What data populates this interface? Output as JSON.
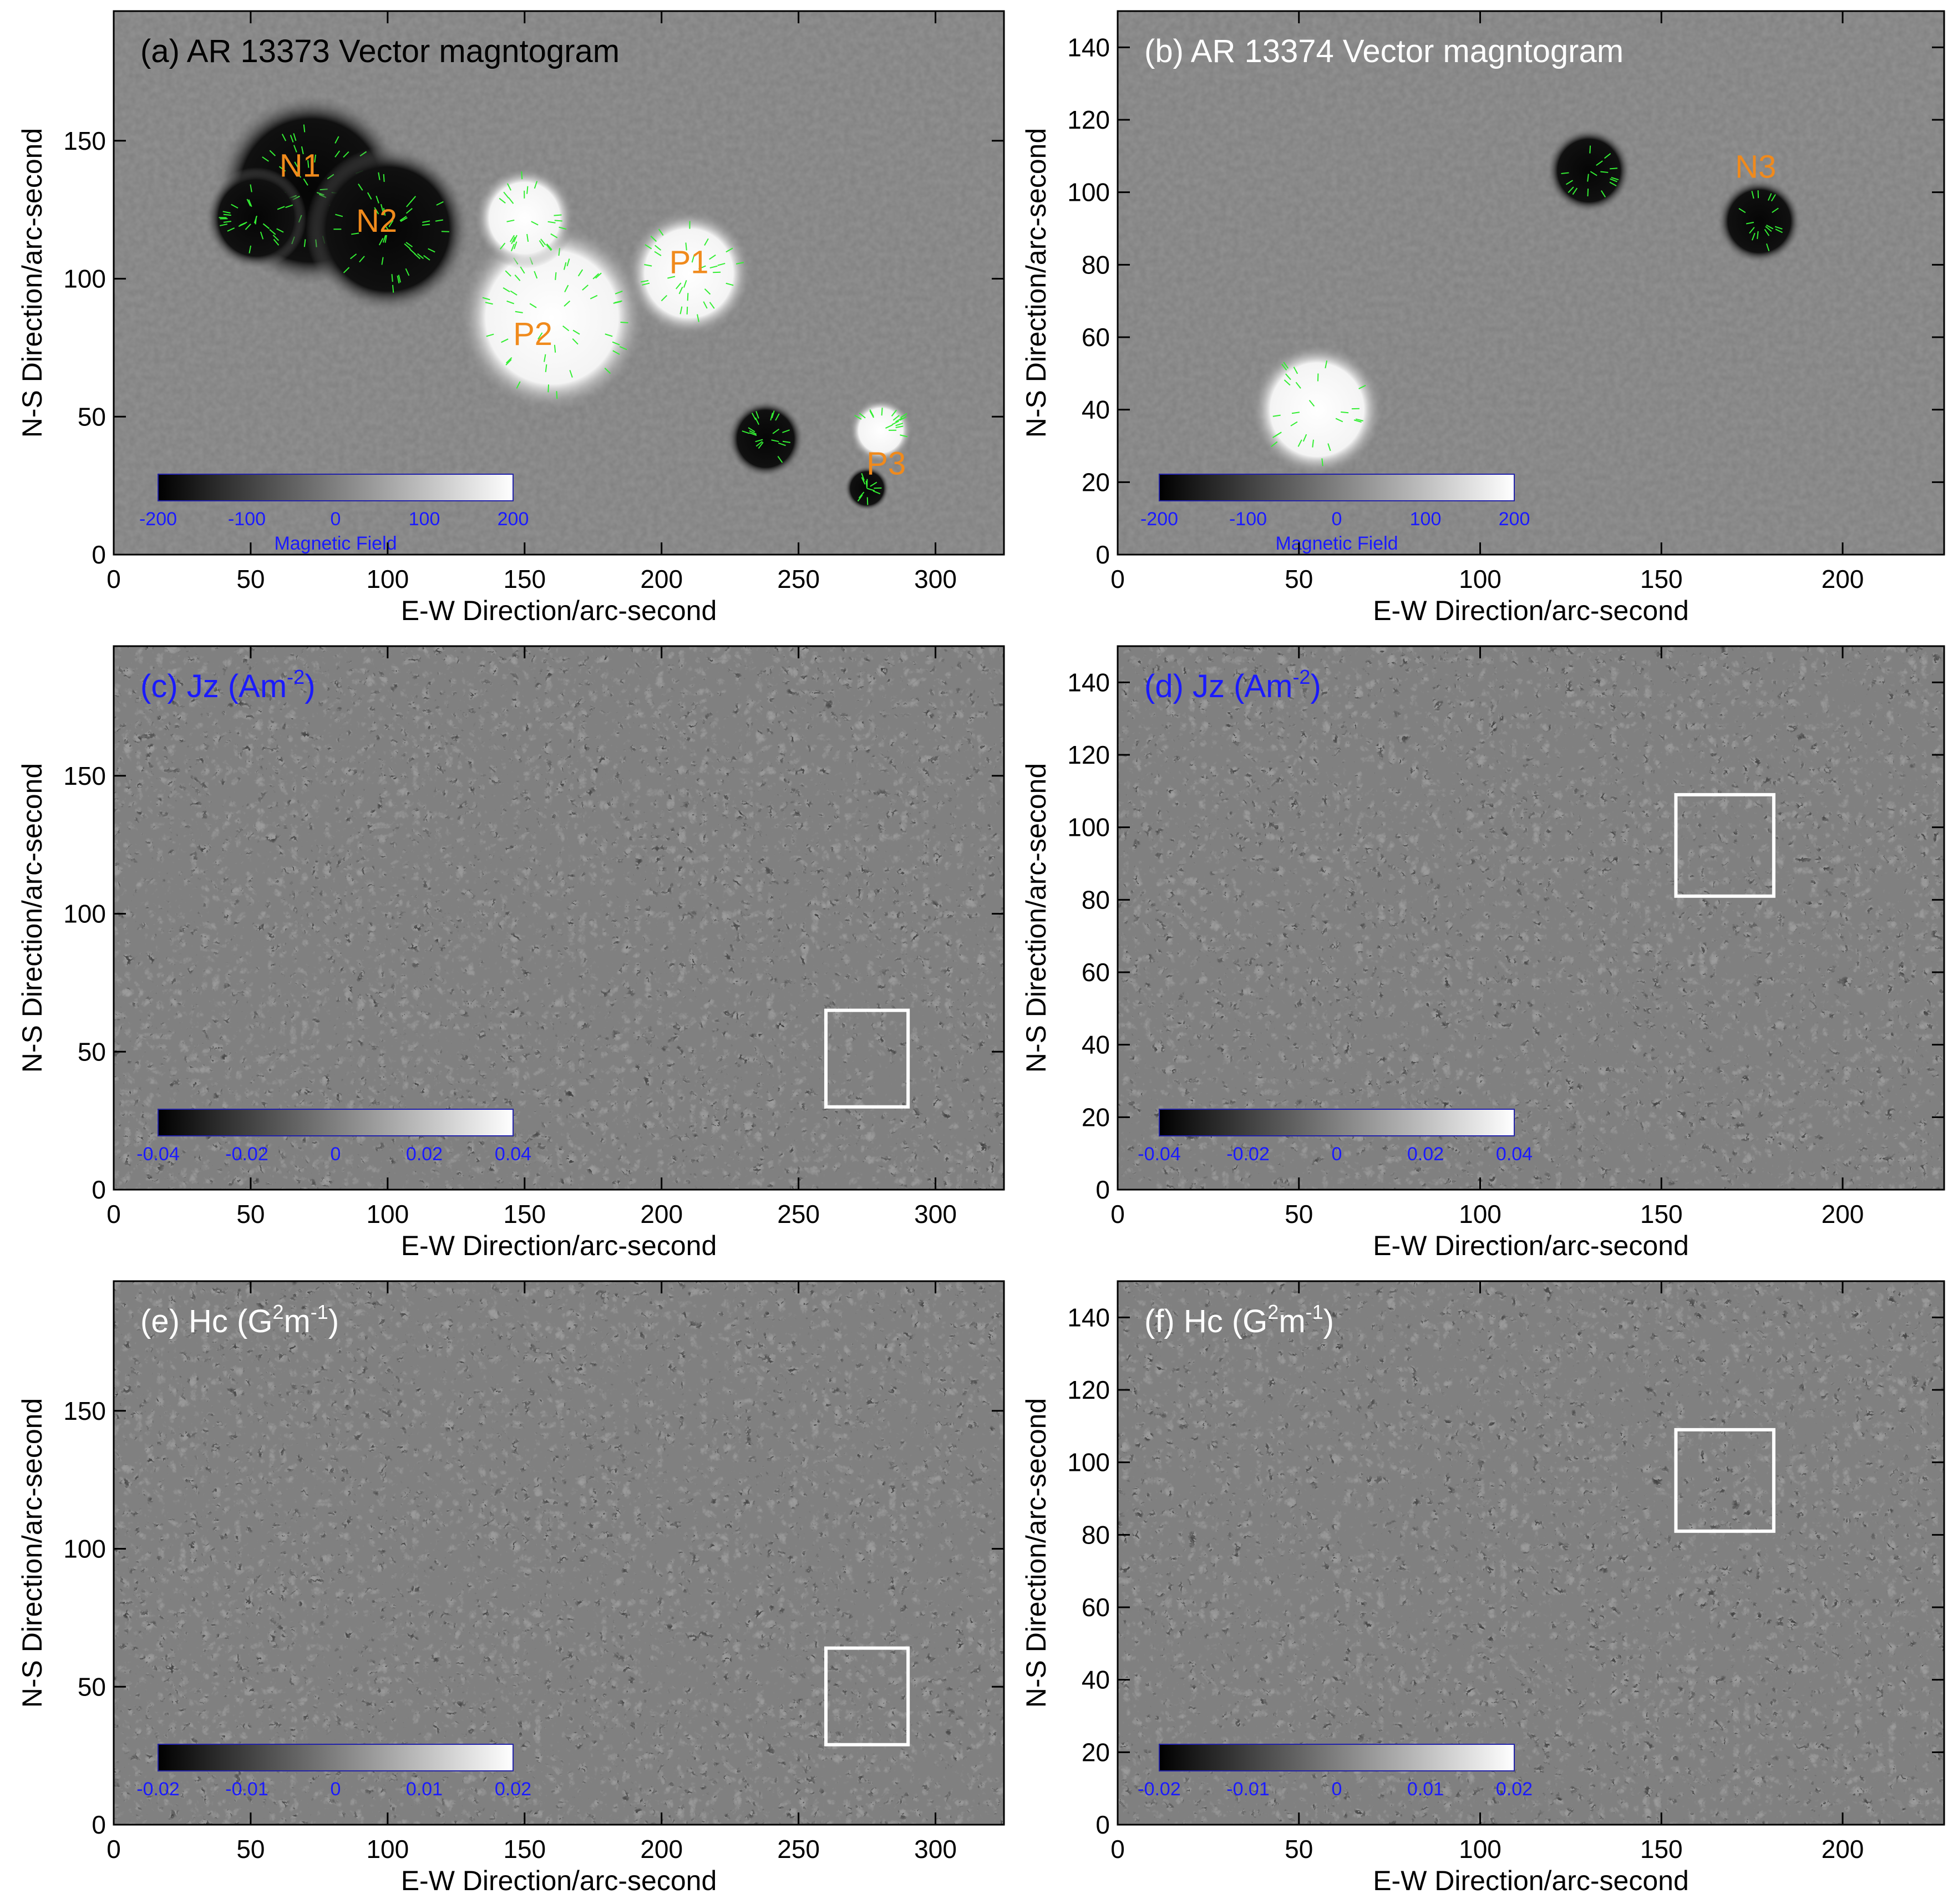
{
  "figure": {
    "panels": [
      {
        "id": "a",
        "label": "(a) AR 13373 Vector magntogram",
        "label_color": "#000000",
        "xlabel": "E-W Direction/arc-second",
        "ylabel": "N-S Direction/arc-second",
        "xlim": [
          0,
          325
        ],
        "ylim": [
          0,
          197
        ],
        "xticks": [
          "0",
          "50",
          "100",
          "150",
          "200",
          "250",
          "300"
        ],
        "yticks": [
          "0",
          "50",
          "100",
          "150"
        ],
        "colorbar_ticks": [
          "-200",
          "-100",
          "0",
          "100",
          "200"
        ],
        "colorbar_label": "Magnetic Field",
        "annotations": [
          {
            "text": "N1",
            "x": 68,
            "y": 137
          },
          {
            "text": "N2",
            "x": 96,
            "y": 117
          },
          {
            "text": "P1",
            "x": 210,
            "y": 102
          },
          {
            "text": "P2",
            "x": 153,
            "y": 76
          },
          {
            "text": "P3",
            "x": 282,
            "y": 29
          }
        ],
        "blobs": [
          {
            "x": 72,
            "y": 132,
            "r": 30,
            "pol": -1
          },
          {
            "x": 100,
            "y": 118,
            "r": 26,
            "pol": -1
          },
          {
            "x": 52,
            "y": 122,
            "r": 16,
            "pol": -1
          },
          {
            "x": 210,
            "y": 102,
            "r": 20,
            "pol": 1
          },
          {
            "x": 160,
            "y": 86,
            "r": 30,
            "pol": 1
          },
          {
            "x": 150,
            "y": 122,
            "r": 16,
            "pol": 1
          },
          {
            "x": 280,
            "y": 45,
            "r": 10,
            "pol": 1
          },
          {
            "x": 238,
            "y": 42,
            "r": 12,
            "pol": -1
          },
          {
            "x": 275,
            "y": 24,
            "r": 7,
            "pol": -1
          }
        ],
        "boxes": []
      },
      {
        "id": "b",
        "label": "(b) AR 13374 Vector magntogram",
        "label_color": "#ffffff",
        "xlabel": "E-W Direction/arc-second",
        "ylabel": "N-S Direction/arc-second",
        "xlim": [
          0,
          228
        ],
        "ylim": [
          0,
          150
        ],
        "xticks": [
          "0",
          "50",
          "100",
          "150",
          "200"
        ],
        "yticks": [
          "0",
          "20",
          "40",
          "60",
          "80",
          "100",
          "120",
          "140"
        ],
        "colorbar_ticks": [
          "-200",
          "-100",
          "0",
          "100",
          "200"
        ],
        "colorbar_label": "Magnetic Field",
        "annotations": [
          {
            "text": "N3",
            "x": 176,
            "y": 104
          }
        ],
        "blobs": [
          {
            "x": 177,
            "y": 92,
            "r": 10,
            "pol": -1
          },
          {
            "x": 130,
            "y": 106,
            "r": 10,
            "pol": -1
          },
          {
            "x": 55,
            "y": 40,
            "r": 16,
            "pol": 1
          }
        ],
        "boxes": []
      },
      {
        "id": "c",
        "label": "(c) Jz (Am",
        "label_sup": "-2",
        "label_tail": ")",
        "label_color": "#1a1aff",
        "xlabel": "E-W Direction/arc-second",
        "ylabel": "N-S Direction/arc-second",
        "xlim": [
          0,
          325
        ],
        "ylim": [
          0,
          197
        ],
        "xticks": [
          "0",
          "50",
          "100",
          "150",
          "200",
          "250",
          "300"
        ],
        "yticks": [
          "0",
          "50",
          "100",
          "150"
        ],
        "colorbar_ticks": [
          "-0.04",
          "-0.02",
          "0",
          "0.02",
          "0.04"
        ],
        "colorbar_label": "",
        "annotations": [],
        "blobs": [],
        "boxes": [
          {
            "x0": 260,
            "x1": 290,
            "y0": 30,
            "y1": 65
          }
        ]
      },
      {
        "id": "d",
        "label": "(d) Jz (Am",
        "label_sup": "-2",
        "label_tail": ")",
        "label_color": "#1a1aff",
        "xlabel": "E-W Direction/arc-second",
        "ylabel": "N-S Direction/arc-second",
        "xlim": [
          0,
          228
        ],
        "ylim": [
          0,
          150
        ],
        "xticks": [
          "0",
          "50",
          "100",
          "150",
          "200"
        ],
        "yticks": [
          "0",
          "20",
          "40",
          "60",
          "80",
          "100",
          "120",
          "140"
        ],
        "colorbar_ticks": [
          "-0.04",
          "-0.02",
          "0",
          "0.02",
          "0.04"
        ],
        "colorbar_label": "",
        "annotations": [],
        "blobs": [],
        "boxes": [
          {
            "x0": 154,
            "x1": 181,
            "y0": 81,
            "y1": 109
          }
        ]
      },
      {
        "id": "e",
        "label": "(e) Hc (G",
        "label_sup": "2",
        "label_mid": "m",
        "label_sup2": "-1",
        "label_tail": ")",
        "label_color": "#ffffff",
        "xlabel": "E-W Direction/arc-second",
        "ylabel": "N-S Direction/arc-second",
        "xlim": [
          0,
          325
        ],
        "ylim": [
          0,
          197
        ],
        "xticks": [
          "0",
          "50",
          "100",
          "150",
          "200",
          "250",
          "300"
        ],
        "yticks": [
          "0",
          "50",
          "100",
          "150"
        ],
        "colorbar_ticks": [
          "-0.02",
          "-0.01",
          "0",
          "0.01",
          "0.02"
        ],
        "colorbar_label": "",
        "annotations": [],
        "blobs": [],
        "boxes": [
          {
            "x0": 260,
            "x1": 290,
            "y0": 29,
            "y1": 64
          }
        ]
      },
      {
        "id": "f",
        "label": "(f) Hc (G",
        "label_sup": "2",
        "label_mid": "m",
        "label_sup2": "-1",
        "label_tail": ")",
        "label_color": "#ffffff",
        "xlabel": "E-W Direction/arc-second",
        "ylabel": "N-S Direction/arc-second",
        "xlim": [
          0,
          228
        ],
        "ylim": [
          0,
          150
        ],
        "xticks": [
          "0",
          "50",
          "100",
          "150",
          "200"
        ],
        "yticks": [
          "0",
          "20",
          "40",
          "60",
          "80",
          "100",
          "120",
          "140"
        ],
        "colorbar_ticks": [
          "-0.02",
          "-0.01",
          "0",
          "0.01",
          "0.02"
        ],
        "colorbar_label": "",
        "annotations": [],
        "blobs": [],
        "boxes": [
          {
            "x0": 154,
            "x1": 181,
            "y0": 81,
            "y1": 109
          }
        ]
      }
    ],
    "colors": {
      "background_gray": "#808080",
      "annotation_orange": "#f08a1c",
      "colorbar_text": "#1a1aff",
      "vector_green": "#33ee33",
      "box_white": "#ffffff"
    }
  }
}
